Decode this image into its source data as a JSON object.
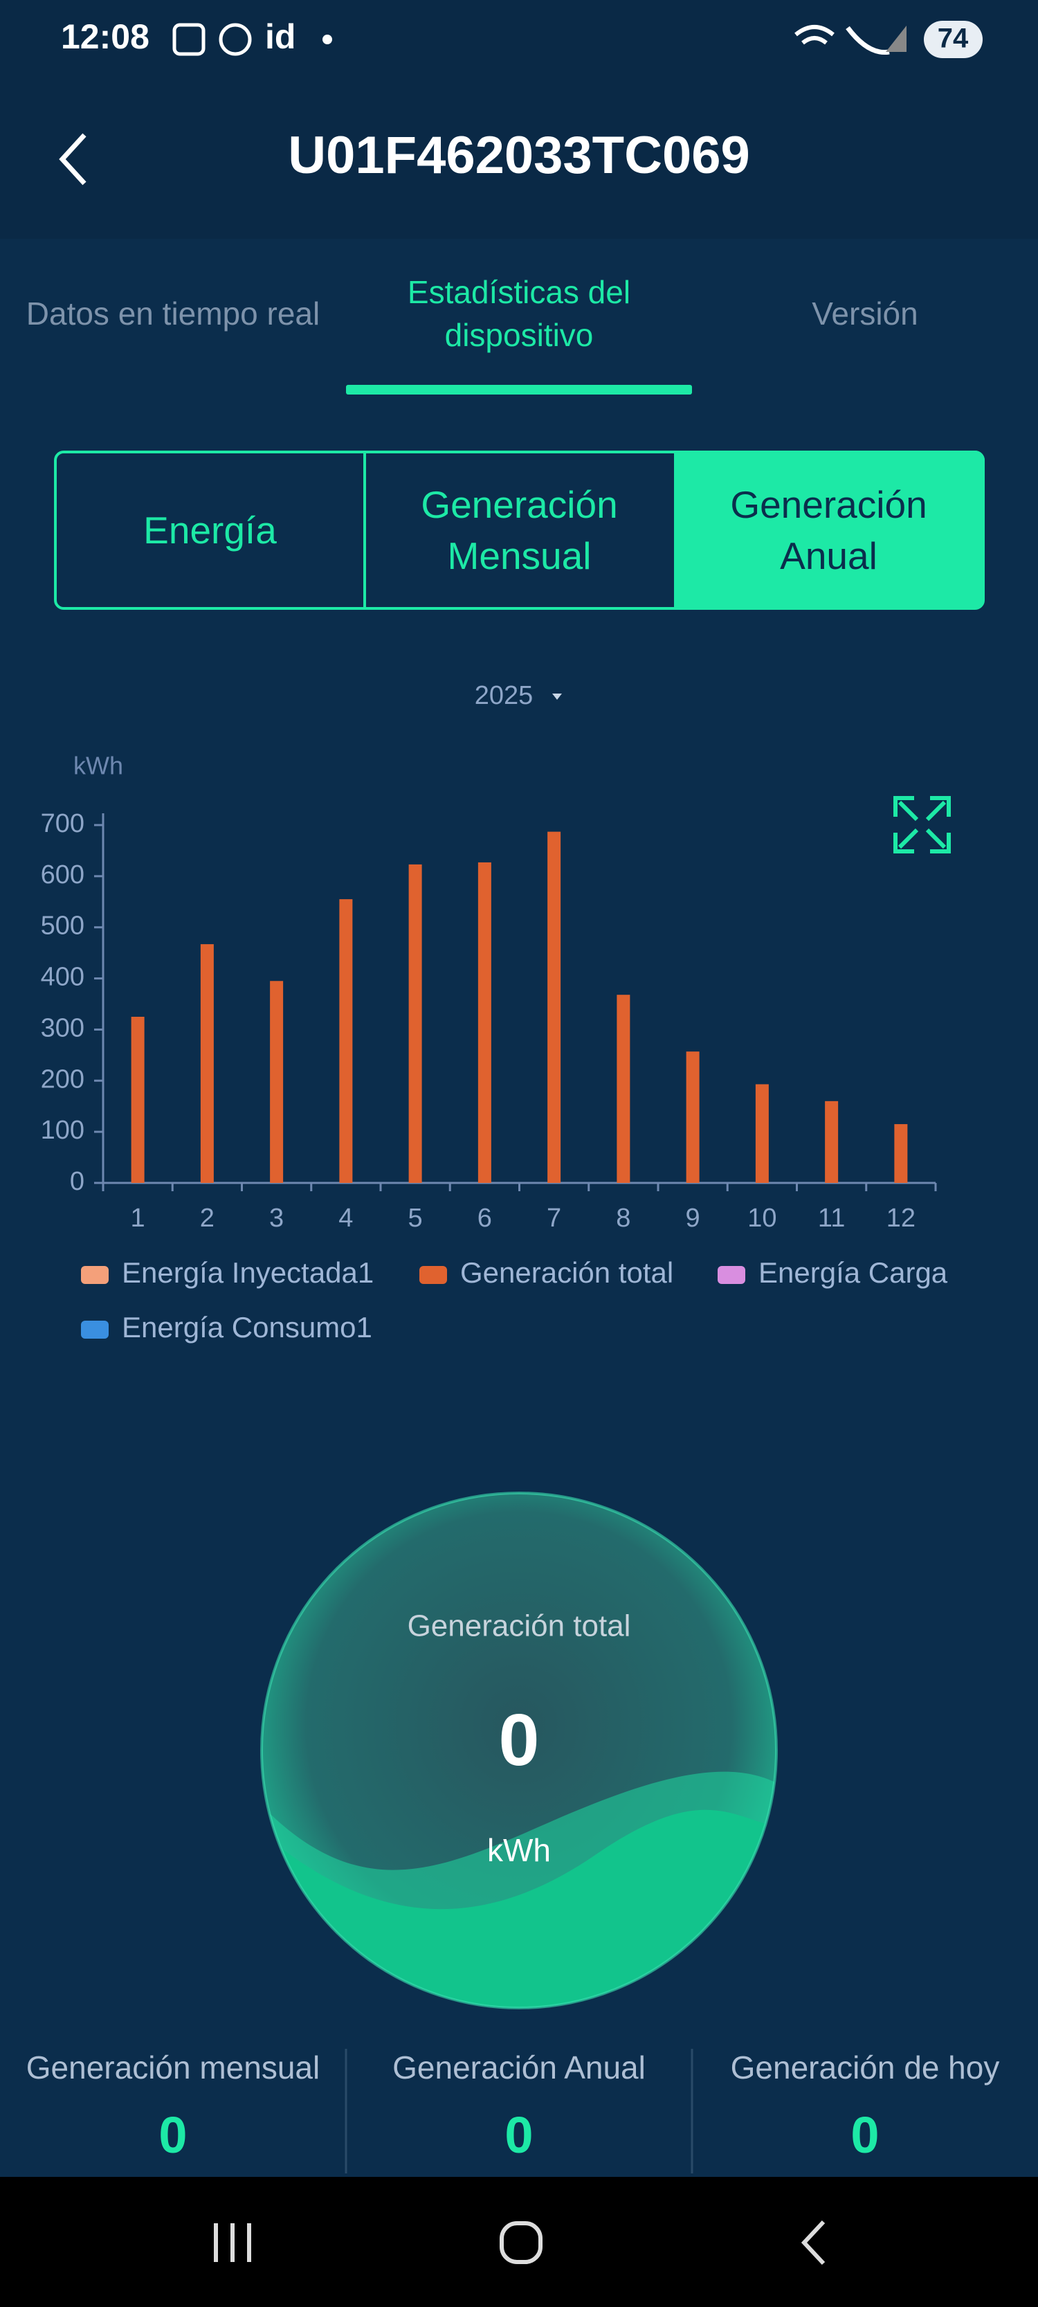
{
  "status_bar": {
    "time": "12:08",
    "carrier": "id",
    "battery": "74"
  },
  "header": {
    "title": "U01F462033TC069"
  },
  "tabs": [
    "Datos en tiempo real",
    "Estadísticas del dispositivo",
    "Versión"
  ],
  "segments": [
    "Energía",
    "Generación Mensual",
    "Generación Anual"
  ],
  "year_selector": "2025",
  "chart_data": {
    "type": "bar",
    "unit_label": "kWh",
    "categories": [
      "1",
      "2",
      "3",
      "4",
      "5",
      "6",
      "7",
      "8",
      "9",
      "10",
      "11",
      "12"
    ],
    "series": [
      {
        "name": "Energía Inyectada1",
        "color": "#f4a07a",
        "values": [
          null,
          null,
          null,
          null,
          null,
          null,
          null,
          null,
          null,
          null,
          null,
          null
        ]
      },
      {
        "name": "Generación total",
        "color": "#e0622f",
        "values": [
          325,
          467,
          395,
          555,
          623,
          627,
          687,
          368,
          257,
          193,
          160,
          115
        ]
      },
      {
        "name": "Energía Carga",
        "color": "#d98ee0",
        "values": [
          null,
          null,
          null,
          null,
          null,
          null,
          null,
          null,
          null,
          null,
          null,
          null
        ]
      },
      {
        "name": "Energía Consumo1",
        "color": "#3a8fe0",
        "values": [
          null,
          null,
          null,
          null,
          null,
          null,
          null,
          null,
          null,
          null,
          null,
          null
        ]
      }
    ],
    "ylim": [
      0,
      700
    ],
    "yticks": [
      0,
      100,
      200,
      300,
      400,
      500,
      600,
      700
    ],
    "grid": false
  },
  "gauge": {
    "title": "Generación total",
    "value": 0,
    "unit": "kWh"
  },
  "stats": [
    {
      "label": "Generación mensual",
      "value": 0
    },
    {
      "label": "Generación Anual",
      "value": 0
    },
    {
      "label": "Generación de hoy",
      "value": 0
    }
  ]
}
